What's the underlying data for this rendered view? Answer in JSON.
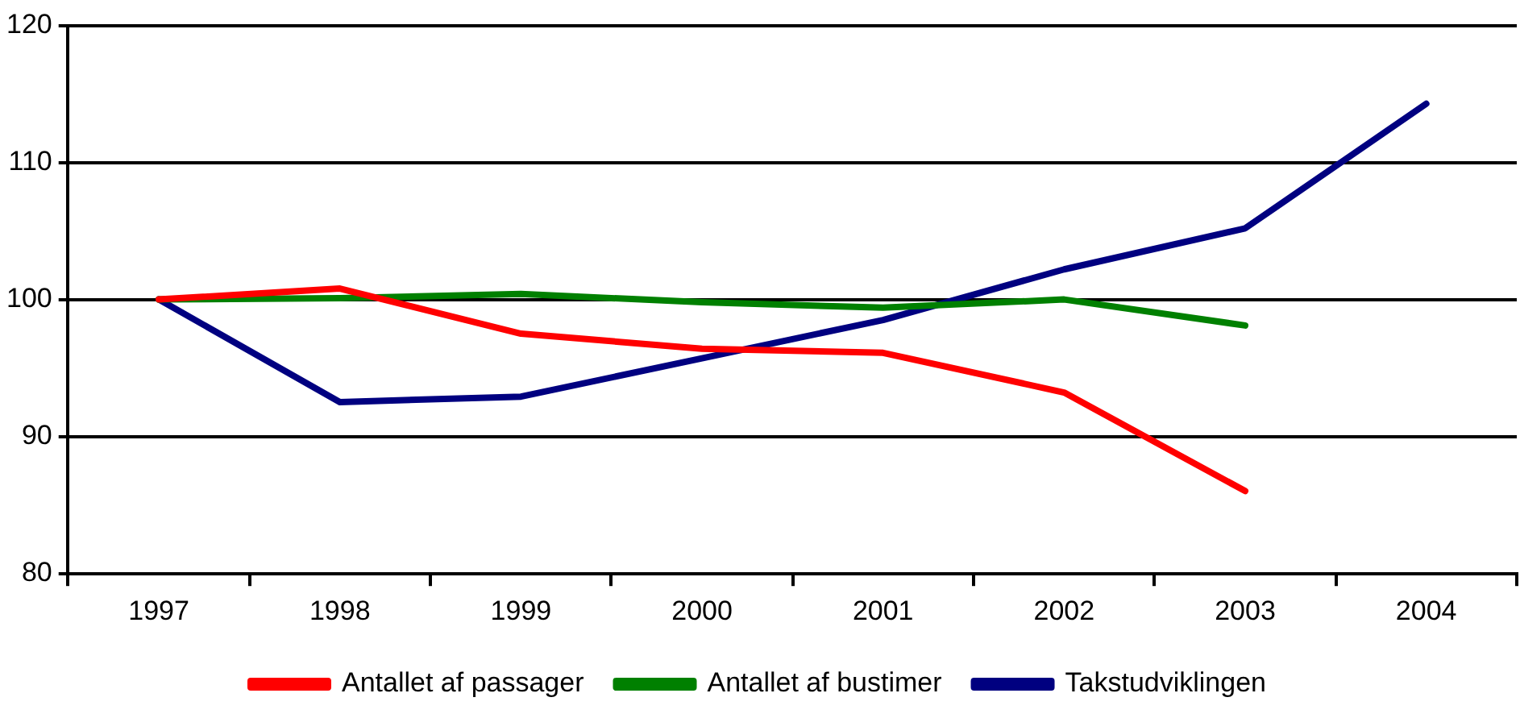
{
  "chart_data": {
    "type": "line",
    "categories": [
      "1997",
      "1998",
      "1999",
      "2000",
      "2001",
      "2002",
      "2003",
      "2004"
    ],
    "series": [
      {
        "name": "Antallet af passager",
        "color": "#ff0000",
        "values": [
          100,
          100.8,
          97.5,
          96.4,
          96.1,
          93.2,
          86.0,
          null
        ]
      },
      {
        "name": "Antallet af bustimer",
        "color": "#008000",
        "values": [
          100,
          100.1,
          100.4,
          99.8,
          99.4,
          100.0,
          98.1,
          null
        ]
      },
      {
        "name": "Takstudviklingen",
        "color": "#000080",
        "values": [
          100,
          92.5,
          92.9,
          95.7,
          98.5,
          102.2,
          105.2,
          114.3
        ]
      }
    ],
    "ylim": [
      80,
      120
    ],
    "yticks": [
      80,
      90,
      100,
      110,
      120
    ],
    "grid": "y",
    "legend": "bottom",
    "marker": "none",
    "line_style": "solid"
  }
}
